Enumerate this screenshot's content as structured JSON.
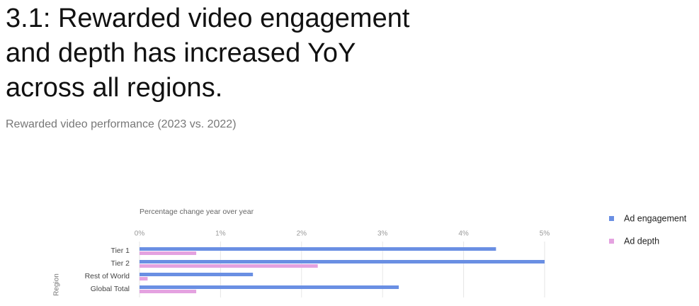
{
  "chart_data": {
    "type": "hbar",
    "title": "3.1: Rewarded video engagement and depth has increased YoY across all regions.",
    "subtitle": "Rewarded video performance (2023 vs. 2022)",
    "x_label": "Percentage change year over year",
    "y_label": "Region",
    "categories": [
      "Tier 1",
      "Tier 2",
      "Rest of World",
      "Global Total"
    ],
    "series": [
      {
        "name": "Ad engagement",
        "color": "#6a8fe3",
        "values": [
          4.4,
          5.0,
          1.4,
          3.2
        ]
      },
      {
        "name": "Ad depth",
        "color": "#e4a2e0",
        "values": [
          0.7,
          2.2,
          0.1,
          0.7
        ]
      }
    ],
    "xlim": [
      0,
      5
    ],
    "xticks": [
      {
        "value": 0,
        "label": "0%"
      },
      {
        "value": 1,
        "label": "1%"
      },
      {
        "value": 2,
        "label": "2%"
      },
      {
        "value": 3,
        "label": "3%"
      },
      {
        "value": 4,
        "label": "4%"
      },
      {
        "value": 5,
        "label": "5%"
      }
    ],
    "grid": true,
    "legend": "right"
  }
}
